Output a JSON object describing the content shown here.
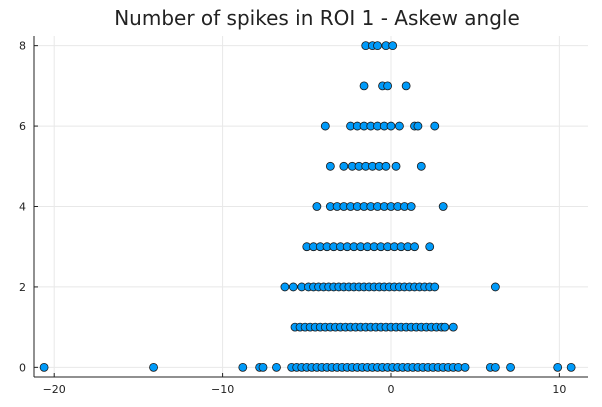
{
  "chart_data": {
    "type": "scatter",
    "title": "Number of spikes in ROI 1 - Askew angle",
    "xlabel": "",
    "ylabel": "",
    "xlim": [
      -21.2,
      11.7
    ],
    "ylim": [
      -0.24,
      8.24
    ],
    "xticks": [
      -20,
      -10,
      0,
      10
    ],
    "xtick_labels": [
      "−20",
      "−10",
      "0",
      "10"
    ],
    "yticks": [
      0,
      2,
      4,
      6,
      8
    ],
    "ytick_labels": [
      "0",
      "2",
      "4",
      "6",
      "8"
    ],
    "grid": true,
    "legend": "none",
    "marker_color": "#009af9",
    "series": [
      {
        "points": [
          [
            -20.6,
            0
          ],
          [
            -14.1,
            0
          ],
          [
            -8.8,
            0
          ],
          [
            -7.8,
            0
          ],
          [
            -7.6,
            0
          ],
          [
            -6.8,
            0
          ],
          [
            -5.9,
            0
          ],
          [
            -5.6,
            0
          ],
          [
            -5.3,
            0
          ],
          [
            -5.0,
            0
          ],
          [
            -4.7,
            0
          ],
          [
            -4.4,
            0
          ],
          [
            -4.1,
            0
          ],
          [
            -3.8,
            0
          ],
          [
            -3.5,
            0
          ],
          [
            -3.2,
            0
          ],
          [
            -2.9,
            0
          ],
          [
            -2.6,
            0
          ],
          [
            -2.3,
            0
          ],
          [
            -2.0,
            0
          ],
          [
            -1.7,
            0
          ],
          [
            -1.4,
            0
          ],
          [
            -1.1,
            0
          ],
          [
            -0.8,
            0
          ],
          [
            -0.5,
            0
          ],
          [
            -0.2,
            0
          ],
          [
            0.1,
            0
          ],
          [
            0.4,
            0
          ],
          [
            0.7,
            0
          ],
          [
            1.0,
            0
          ],
          [
            1.3,
            0
          ],
          [
            1.6,
            0
          ],
          [
            1.9,
            0
          ],
          [
            2.2,
            0
          ],
          [
            2.5,
            0
          ],
          [
            2.8,
            0
          ],
          [
            3.1,
            0
          ],
          [
            3.4,
            0
          ],
          [
            3.7,
            0
          ],
          [
            4.0,
            0
          ],
          [
            4.4,
            0
          ],
          [
            5.9,
            0
          ],
          [
            6.2,
            0
          ],
          [
            7.1,
            0
          ],
          [
            9.9,
            0
          ],
          [
            10.7,
            0
          ],
          [
            -5.7,
            1
          ],
          [
            -5.4,
            1
          ],
          [
            -5.1,
            1
          ],
          [
            -4.8,
            1
          ],
          [
            -4.5,
            1
          ],
          [
            -4.2,
            1
          ],
          [
            -3.9,
            1
          ],
          [
            -3.6,
            1
          ],
          [
            -3.3,
            1
          ],
          [
            -3.0,
            1
          ],
          [
            -2.7,
            1
          ],
          [
            -2.4,
            1
          ],
          [
            -2.1,
            1
          ],
          [
            -1.8,
            1
          ],
          [
            -1.5,
            1
          ],
          [
            -1.2,
            1
          ],
          [
            -0.9,
            1
          ],
          [
            -0.6,
            1
          ],
          [
            -0.3,
            1
          ],
          [
            0.0,
            1
          ],
          [
            0.3,
            1
          ],
          [
            0.6,
            1
          ],
          [
            0.9,
            1
          ],
          [
            1.2,
            1
          ],
          [
            1.5,
            1
          ],
          [
            1.8,
            1
          ],
          [
            2.1,
            1
          ],
          [
            2.4,
            1
          ],
          [
            2.7,
            1
          ],
          [
            3.0,
            1
          ],
          [
            3.2,
            1
          ],
          [
            3.7,
            1
          ],
          [
            -6.3,
            2
          ],
          [
            -5.8,
            2
          ],
          [
            -5.3,
            2
          ],
          [
            -4.9,
            2
          ],
          [
            -4.6,
            2
          ],
          [
            -4.3,
            2
          ],
          [
            -4.0,
            2
          ],
          [
            -3.7,
            2
          ],
          [
            -3.4,
            2
          ],
          [
            -3.1,
            2
          ],
          [
            -2.8,
            2
          ],
          [
            -2.5,
            2
          ],
          [
            -2.2,
            2
          ],
          [
            -1.9,
            2
          ],
          [
            -1.6,
            2
          ],
          [
            -1.3,
            2
          ],
          [
            -1.0,
            2
          ],
          [
            -0.7,
            2
          ],
          [
            -0.4,
            2
          ],
          [
            -0.1,
            2
          ],
          [
            0.2,
            2
          ],
          [
            0.5,
            2
          ],
          [
            0.8,
            2
          ],
          [
            1.1,
            2
          ],
          [
            1.4,
            2
          ],
          [
            1.7,
            2
          ],
          [
            2.0,
            2
          ],
          [
            2.3,
            2
          ],
          [
            2.6,
            2
          ],
          [
            6.2,
            2
          ],
          [
            -5.0,
            3
          ],
          [
            -4.6,
            3
          ],
          [
            -4.2,
            3
          ],
          [
            -3.8,
            3
          ],
          [
            -3.4,
            3
          ],
          [
            -3.0,
            3
          ],
          [
            -2.6,
            3
          ],
          [
            -2.2,
            3
          ],
          [
            -1.8,
            3
          ],
          [
            -1.4,
            3
          ],
          [
            -1.0,
            3
          ],
          [
            -0.6,
            3
          ],
          [
            -0.2,
            3
          ],
          [
            0.2,
            3
          ],
          [
            0.6,
            3
          ],
          [
            1.0,
            3
          ],
          [
            1.4,
            3
          ],
          [
            2.3,
            3
          ],
          [
            -4.4,
            4
          ],
          [
            -3.6,
            4
          ],
          [
            -3.2,
            4
          ],
          [
            -2.8,
            4
          ],
          [
            -2.4,
            4
          ],
          [
            -2.0,
            4
          ],
          [
            -1.6,
            4
          ],
          [
            -1.2,
            4
          ],
          [
            -0.8,
            4
          ],
          [
            -0.4,
            4
          ],
          [
            0.0,
            4
          ],
          [
            0.4,
            4
          ],
          [
            0.8,
            4
          ],
          [
            1.2,
            4
          ],
          [
            3.1,
            4
          ],
          [
            -3.6,
            5
          ],
          [
            -2.8,
            5
          ],
          [
            -2.3,
            5
          ],
          [
            -1.9,
            5
          ],
          [
            -1.5,
            5
          ],
          [
            -1.1,
            5
          ],
          [
            -0.7,
            5
          ],
          [
            -0.3,
            5
          ],
          [
            0.3,
            5
          ],
          [
            1.8,
            5
          ],
          [
            -3.9,
            6
          ],
          [
            -2.4,
            6
          ],
          [
            -2.0,
            6
          ],
          [
            -1.6,
            6
          ],
          [
            -1.2,
            6
          ],
          [
            -0.8,
            6
          ],
          [
            -0.4,
            6
          ],
          [
            0.0,
            6
          ],
          [
            0.5,
            6
          ],
          [
            1.4,
            6
          ],
          [
            1.6,
            6
          ],
          [
            2.6,
            6
          ],
          [
            -1.6,
            7
          ],
          [
            -0.5,
            7
          ],
          [
            -0.2,
            7
          ],
          [
            0.9,
            7
          ],
          [
            -1.5,
            8
          ],
          [
            -1.1,
            8
          ],
          [
            -0.8,
            8
          ],
          [
            -0.3,
            8
          ],
          [
            0.1,
            8
          ]
        ]
      }
    ]
  }
}
